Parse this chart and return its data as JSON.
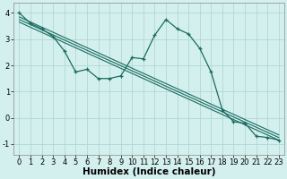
{
  "xlabel": "Humidex (Indice chaleur)",
  "bg_color": "#d4f0ee",
  "grid_color": "#b0d8d4",
  "line_color": "#1a6b60",
  "xlim": [
    -0.5,
    23.5
  ],
  "ylim": [
    -1.4,
    4.4
  ],
  "xticks": [
    0,
    1,
    2,
    3,
    4,
    5,
    6,
    7,
    8,
    9,
    10,
    11,
    12,
    13,
    14,
    15,
    16,
    17,
    18,
    19,
    20,
    21,
    22,
    23
  ],
  "yticks": [
    -1,
    0,
    1,
    2,
    3,
    4
  ],
  "line1_x": [
    0,
    1,
    2,
    3,
    4,
    5,
    6,
    7,
    8,
    9,
    10,
    11,
    12,
    13,
    14,
    15,
    16,
    17,
    18,
    19,
    20,
    21,
    22,
    23
  ],
  "line1_y": [
    4.0,
    3.6,
    3.4,
    3.1,
    2.55,
    1.75,
    1.85,
    1.5,
    1.5,
    1.6,
    2.3,
    2.25,
    3.15,
    3.75,
    3.4,
    3.2,
    2.65,
    1.75,
    0.3,
    -0.15,
    -0.2,
    -0.7,
    -0.75,
    -0.85
  ],
  "line2_x": [
    0,
    23
  ],
  "line2_y": [
    3.85,
    -0.65
  ],
  "line3_x": [
    0,
    23
  ],
  "line3_y": [
    3.75,
    -0.75
  ],
  "line4_x": [
    0,
    23
  ],
  "line4_y": [
    3.65,
    -0.85
  ],
  "xlabel_fontsize": 7.5,
  "tick_fontsize": 6.0
}
